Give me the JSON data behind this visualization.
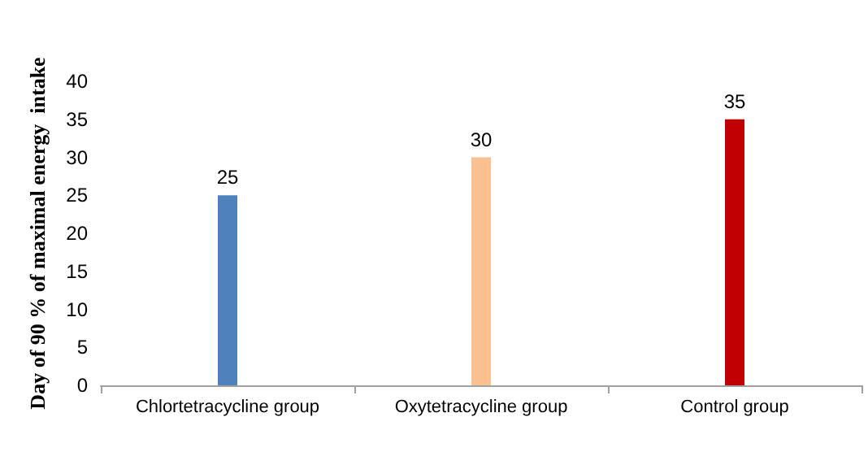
{
  "chart_data": {
    "type": "bar",
    "ylabel": "Day of 90 % of maximal energy  intake",
    "categories": [
      "Chlortetracycline group",
      "Oxytetracycline group",
      "Control group"
    ],
    "values": [
      25,
      30,
      35
    ],
    "colors": [
      "#4f81bd",
      "#fac090",
      "#c00000"
    ],
    "ylim": [
      0,
      40
    ],
    "yticks": [
      0,
      5,
      10,
      15,
      20,
      25,
      30,
      35,
      40
    ],
    "grid": false,
    "data_labels": true
  }
}
